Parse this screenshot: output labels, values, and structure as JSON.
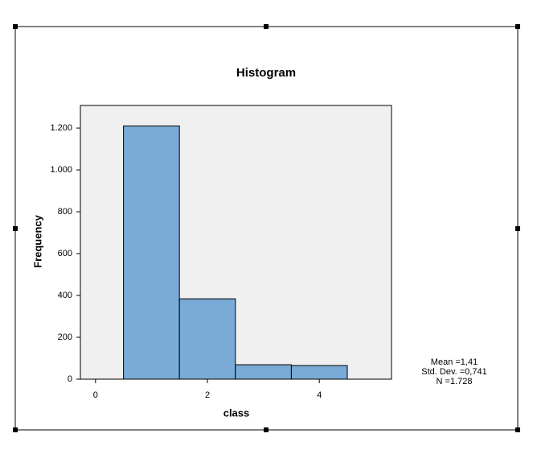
{
  "chart_data": {
    "type": "histogram",
    "title": "Histogram",
    "x_label": "class",
    "y_label": "Frequency",
    "bins": [
      0.5,
      1.5,
      2.5,
      3.5,
      4.5
    ],
    "counts": [
      1210,
      384,
      69,
      65
    ],
    "color": "#7aaad6",
    "xlim": [
      -0.27,
      5.29
    ],
    "xticks": [
      0,
      2,
      4
    ],
    "ylim": [
      0,
      1308
    ],
    "yticks": [
      0,
      200,
      400,
      600,
      800,
      {
        "value": 1000,
        "label": "1.000"
      },
      {
        "value": 1200,
        "label": "1.200"
      }
    ],
    "annotations": [
      "Mean =1,41",
      "Std. Dev. =0,741",
      "N =1.728"
    ]
  }
}
